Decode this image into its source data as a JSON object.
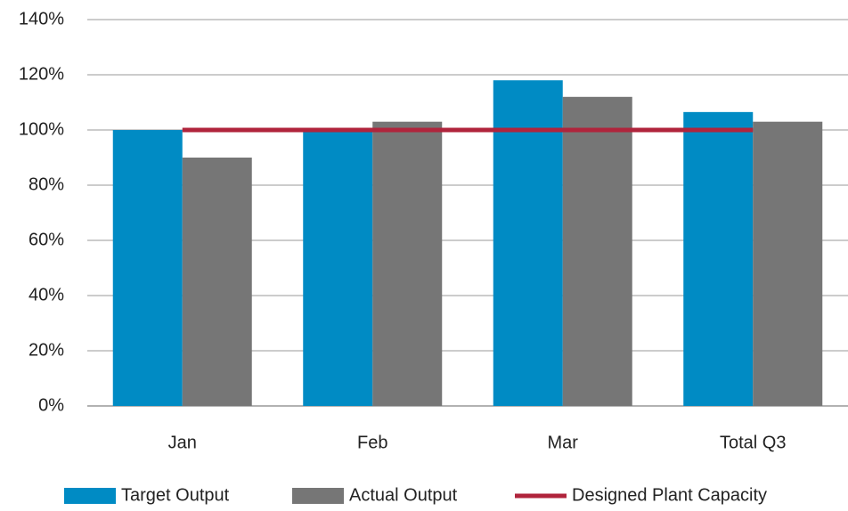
{
  "chart_data": {
    "type": "bar",
    "categories": [
      "Jan",
      "Feb",
      "Mar",
      "Total Q3"
    ],
    "series": [
      {
        "name": "Target Output",
        "color": "#008bc4",
        "type": "bar",
        "values": [
          100,
          100,
          118,
          106.5
        ]
      },
      {
        "name": "Actual Output",
        "color": "#767676",
        "type": "bar",
        "values": [
          90,
          103,
          112,
          103
        ]
      },
      {
        "name": "Designed Plant Capacity",
        "color": "#b0243c",
        "type": "line",
        "values": [
          100,
          100,
          100,
          100
        ]
      }
    ],
    "ylim": [
      0,
      140
    ],
    "yticks": [
      {
        "value": 0,
        "label": "0%"
      },
      {
        "value": 20,
        "label": "20%"
      },
      {
        "value": 40,
        "label": "40%"
      },
      {
        "value": 60,
        "label": "60%"
      },
      {
        "value": 80,
        "label": "80%"
      },
      {
        "value": 100,
        "label": "100%"
      },
      {
        "value": 120,
        "label": "120%"
      },
      {
        "value": 140,
        "label": "140%"
      }
    ],
    "grid": true,
    "legend": "bottom"
  }
}
